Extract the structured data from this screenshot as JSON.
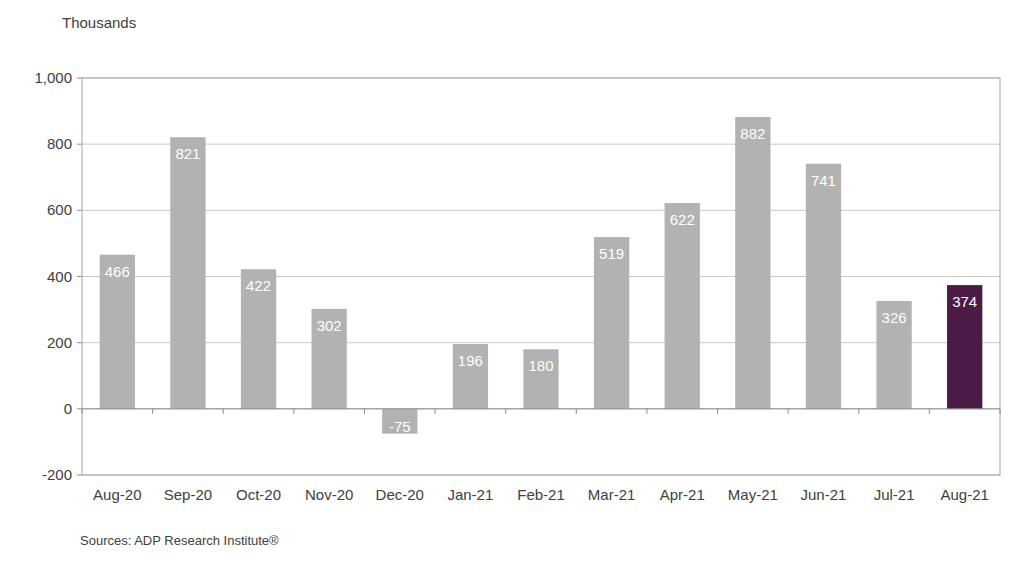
{
  "chart_data": {
    "type": "bar",
    "y_label": "Thousands",
    "source": "Sources: ADP Research Institute®",
    "categories": [
      "Aug-20",
      "Sep-20",
      "Oct-20",
      "Nov-20",
      "Dec-20",
      "Jan-21",
      "Feb-21",
      "Mar-21",
      "Apr-21",
      "May-21",
      "Jun-21",
      "Jul-21",
      "Aug-21"
    ],
    "values": [
      466,
      821,
      422,
      302,
      -75,
      196,
      180,
      519,
      622,
      882,
      741,
      326,
      374
    ],
    "colors": [
      "#b2b2b2",
      "#b2b2b2",
      "#b2b2b2",
      "#b2b2b2",
      "#b2b2b2",
      "#b2b2b2",
      "#b2b2b2",
      "#b2b2b2",
      "#b2b2b2",
      "#b2b2b2",
      "#b2b2b2",
      "#b2b2b2",
      "#4b1a45"
    ],
    "ylim": [
      -200,
      1000
    ],
    "yticks": [
      -200,
      0,
      200,
      400,
      600,
      800,
      {
        "value": 1000,
        "label": "1,000"
      }
    ],
    "grid": true,
    "data_labels": true
  }
}
